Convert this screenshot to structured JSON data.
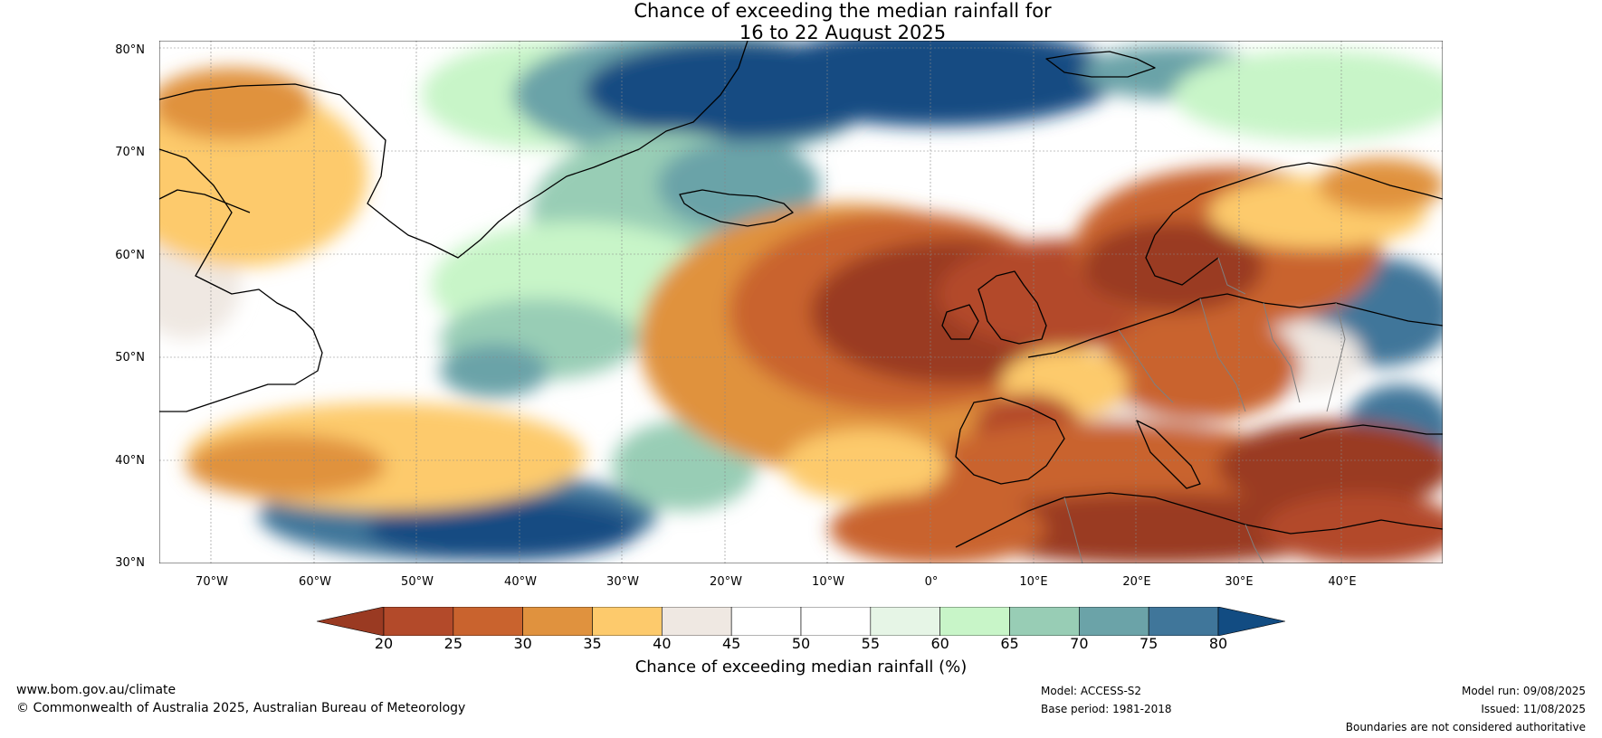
{
  "title_line1": "Chance of exceeding the median rainfall for",
  "title_line2": "16 to 22 August 2025",
  "lat_labels": [
    "80°N",
    "70°N",
    "60°N",
    "50°N",
    "40°N",
    "30°N"
  ],
  "lon_labels": [
    "70°W",
    "60°W",
    "50°W",
    "40°W",
    "30°W",
    "20°W",
    "10°W",
    "0°",
    "10°E",
    "20°E",
    "30°E",
    "40°E"
  ],
  "colorbar": {
    "ticks": [
      "20",
      "25",
      "30",
      "35",
      "40",
      "45",
      "50",
      "55",
      "60",
      "65",
      "70",
      "75",
      "80"
    ],
    "colors": [
      "#9a3a22",
      "#b34a2a",
      "#c9632e",
      "#e0923e",
      "#fdca6c",
      "#efe8e2",
      "#ffffff",
      "#ffffff",
      "#e6f5e6",
      "#c8f5c8",
      "#98cdb5",
      "#6ba3a8",
      "#40769a",
      "#124c82"
    ],
    "label": "Chance of exceeding median rainfall (%)"
  },
  "footer": {
    "url": "www.bom.gov.au/climate",
    "copyright": "© Commonwealth of Australia 2025, Australian Bureau of Meteorology",
    "model": "Model: ACCESS-S2",
    "base_period": "Base period: 1981-2018",
    "model_run": "Model run: 09/08/2025",
    "issued": "Issued: 11/08/2025",
    "disclaimer": "Boundaries are not considered authoritative"
  }
}
